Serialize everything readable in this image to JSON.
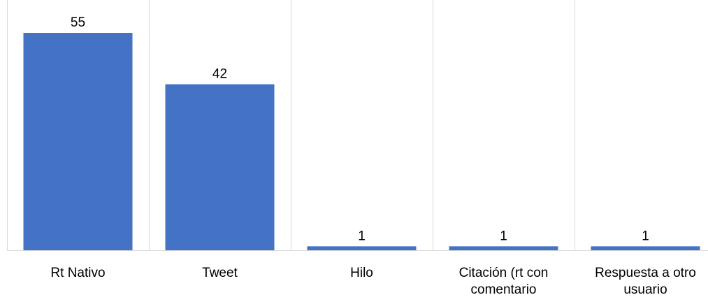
{
  "chart_data": {
    "type": "bar",
    "categories": [
      "Rt Nativo",
      "Tweet",
      "Hilo",
      "Citación (rt con\ncomentario",
      "Respuesta a otro\nusuario"
    ],
    "values": [
      55,
      42,
      1,
      1,
      1
    ],
    "value_labels": [
      "55",
      "42",
      "1",
      "1",
      "1"
    ],
    "title": "",
    "xlabel": "",
    "ylabel": "",
    "ylim": [
      0,
      60
    ],
    "grid": "vertical separators between categories",
    "legend": "none",
    "colors": {
      "bar": "#4472C4",
      "grid": "#D9D9D9",
      "axis": "#D9D9D9",
      "text": "#000000"
    }
  }
}
